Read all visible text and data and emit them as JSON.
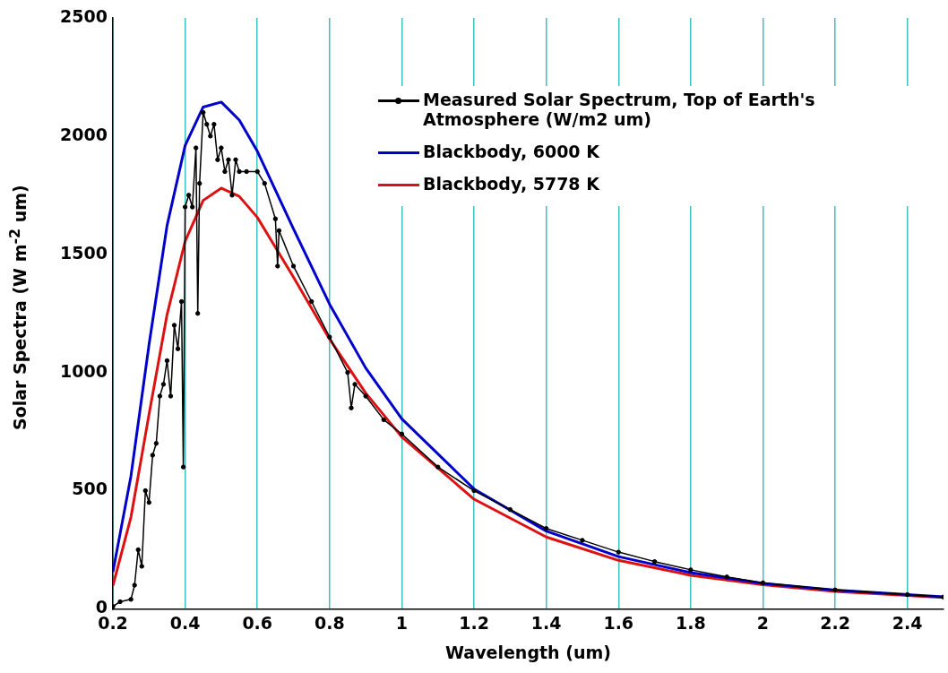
{
  "chart_data": {
    "type": "line",
    "xlabel": "Wavelength (um)",
    "ylabel": "Solar Spectra (W m$^{-2}$ um)",
    "xlim": [
      0.2,
      2.5
    ],
    "xticks": [
      0.2,
      0.4,
      0.6,
      0.8,
      1,
      1.2,
      1.4,
      1.6,
      1.8,
      2,
      2.2,
      2.4
    ],
    "ylim": [
      0,
      2500
    ],
    "yticks": [
      0,
      500,
      1000,
      1500,
      2000,
      2500
    ],
    "grid": "x",
    "legend": "top right",
    "line_style": "solid",
    "series": [
      {
        "name": "Measured Solar Spectrum, Top of Earth's Atmosphere (W/m2 um)",
        "color": "#000000",
        "marker": "circle",
        "x": [
          0.2,
          0.22,
          0.25,
          0.26,
          0.27,
          0.28,
          0.29,
          0.3,
          0.31,
          0.32,
          0.33,
          0.34,
          0.35,
          0.36,
          0.37,
          0.38,
          0.39,
          0.395,
          0.4,
          0.41,
          0.42,
          0.43,
          0.435,
          0.44,
          0.45,
          0.46,
          0.47,
          0.48,
          0.49,
          0.5,
          0.51,
          0.52,
          0.53,
          0.54,
          0.55,
          0.57,
          0.6,
          0.62,
          0.65,
          0.656,
          0.66,
          0.7,
          0.75,
          0.8,
          0.85,
          0.86,
          0.87,
          0.9,
          0.95,
          1,
          1.1,
          1.2,
          1.3,
          1.4,
          1.5,
          1.6,
          1.7,
          1.8,
          1.9,
          2,
          2.2,
          2.4,
          2.5
        ],
        "values": [
          10,
          30,
          40,
          100,
          250,
          180,
          500,
          450,
          650,
          700,
          900,
          950,
          1050,
          900,
          1200,
          1100,
          1300,
          600,
          1700,
          1750,
          1700,
          1950,
          1250,
          1800,
          2100,
          2050,
          2000,
          2050,
          1900,
          1950,
          1850,
          1900,
          1750,
          1900,
          1850,
          1850,
          1850,
          1800,
          1650,
          1450,
          1600,
          1450,
          1300,
          1150,
          1000,
          850,
          950,
          900,
          800,
          740,
          600,
          500,
          420,
          340,
          290,
          240,
          200,
          165,
          135,
          110,
          80,
          60,
          50
        ]
      },
      {
        "name": "Blackbody, 6000 K",
        "color": "#0000cc",
        "marker": "none",
        "x": [
          0.2,
          0.25,
          0.3,
          0.35,
          0.4,
          0.45,
          0.5,
          0.55,
          0.6,
          0.7,
          0.8,
          0.9,
          1,
          1.2,
          1.4,
          1.6,
          1.8,
          2,
          2.2,
          2.5
        ],
        "values": [
          156,
          562,
          1117,
          1622,
          1960,
          2123,
          2144,
          2068,
          1936,
          1608,
          1289,
          1019,
          804,
          507,
          329,
          221,
          153,
          108,
          79,
          51
        ]
      },
      {
        "name": "Blackbody, 5778 K",
        "color": "#dd1111",
        "marker": "none",
        "x": [
          0.2,
          0.25,
          0.3,
          0.35,
          0.4,
          0.45,
          0.5,
          0.55,
          0.6,
          0.7,
          0.8,
          0.9,
          1,
          1.2,
          1.4,
          1.6,
          1.8,
          2,
          2.2,
          2.5
        ],
        "values": [
          98,
          388,
          822,
          1245,
          1555,
          1728,
          1780,
          1745,
          1656,
          1403,
          1141,
          913,
          727,
          464,
          304,
          205,
          142,
          102,
          74,
          48
        ]
      }
    ]
  }
}
